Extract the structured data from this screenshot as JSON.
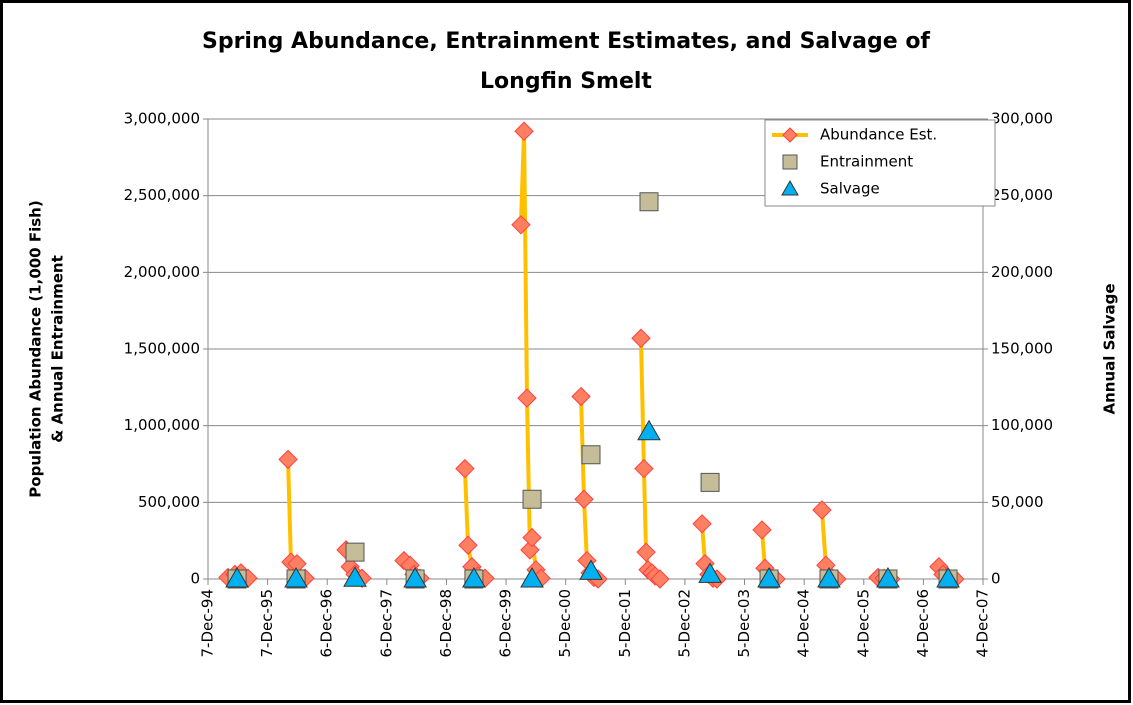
{
  "chart_data": {
    "type": "line",
    "title": [
      "Spring Abundance, Entrainment Estimates, and Salvage of",
      "Longfin Smelt"
    ],
    "ylabel": [
      "Population Abundance (1,000 Fish)",
      "& Annual Entrainment"
    ],
    "y2label": "Annual Salvage",
    "xlim": [
      "1994-12-07",
      "2007-12-04"
    ],
    "xticks": [
      {
        "value": "1994-12-07",
        "label": "7-Dec-94"
      },
      {
        "value": "1995-12-07",
        "label": "7-Dec-95"
      },
      {
        "value": "1996-12-06",
        "label": "6-Dec-96"
      },
      {
        "value": "1997-12-06",
        "label": "6-Dec-97"
      },
      {
        "value": "1998-12-06",
        "label": "6-Dec-98"
      },
      {
        "value": "1999-12-06",
        "label": "6-Dec-99"
      },
      {
        "value": "2000-12-05",
        "label": "5-Dec-00"
      },
      {
        "value": "2001-12-05",
        "label": "5-Dec-01"
      },
      {
        "value": "2002-12-05",
        "label": "5-Dec-02"
      },
      {
        "value": "2003-12-05",
        "label": "5-Dec-03"
      },
      {
        "value": "2004-12-04",
        "label": "4-Dec-04"
      },
      {
        "value": "2005-12-04",
        "label": "4-Dec-05"
      },
      {
        "value": "2006-12-04",
        "label": "4-Dec-06"
      },
      {
        "value": "2007-12-04",
        "label": "4-Dec-07"
      }
    ],
    "ylim": [
      0,
      3000000
    ],
    "yticks": [
      0,
      {
        "value": 500000,
        "label": "500,000"
      },
      {
        "value": 1000000,
        "label": "1,000,000"
      },
      {
        "value": 1500000,
        "label": "1,500,000"
      },
      {
        "value": 2000000,
        "label": "2,000,000"
      },
      {
        "value": 2500000,
        "label": "2,500,000"
      },
      {
        "value": 3000000,
        "label": "3,000,000"
      }
    ],
    "y2lim": [
      0,
      300000
    ],
    "y2ticks": [
      0,
      {
        "value": 50000,
        "label": "50,000"
      },
      {
        "value": 100000,
        "label": "100,000"
      },
      {
        "value": 150000,
        "label": "150,000"
      },
      {
        "value": 200000,
        "label": "200,000"
      },
      {
        "value": 250000,
        "label": "250,000"
      },
      {
        "value": 300000,
        "label": "300,000"
      }
    ],
    "grid": true,
    "legend": "top-right",
    "series": [
      {
        "name": "Abundance Est.",
        "color": "#ffc000",
        "marker": "diamond",
        "marker_color": "#ff8060",
        "x": [
          "1995-04-08",
          "1995-05-21",
          "1995-06-27",
          "1995-08-09",
          null,
          "1996-04-10",
          "1996-04-28",
          "1996-06-04",
          "1996-07-23",
          null,
          "1997-03-31",
          "1997-04-25",
          "1997-05-25",
          "1997-07-07",
          null,
          "1998-03-21",
          "1998-04-27",
          "1998-05-21",
          "1998-06-27",
          null,
          "1999-03-29",
          "1999-04-17",
          "1999-05-11",
          "1999-06-17",
          "1999-07-30",
          null,
          "2000-03-06",
          "2000-03-25",
          "2000-04-12",
          "2000-04-30",
          "2000-05-13",
          "2000-06-06",
          "2000-07-07",
          null,
          "2001-03-09",
          "2001-03-27",
          "2001-04-14",
          "2001-05-03",
          "2001-05-27",
          "2001-06-21",
          null,
          "2002-03-11",
          "2002-03-29",
          "2002-04-11",
          "2002-04-23",
          "2002-05-17",
          "2002-06-05",
          "2002-07-05",
          null,
          "2003-03-20",
          "2003-04-07",
          "2003-05-01",
          "2003-05-26",
          "2003-06-19",
          null,
          "2004-03-21",
          "2004-04-08",
          "2004-05-09",
          "2004-06-15",
          null,
          "2005-03-23",
          "2005-04-16",
          "2005-05-23",
          "2005-06-23",
          null,
          "2006-03-01",
          "2006-04-07",
          "2006-05-19",
          null,
          "2007-03-09",
          "2007-04-03",
          "2007-05-10",
          "2007-06-15"
        ],
        "values": [
          10000,
          30000,
          40000,
          5000,
          null,
          780000,
          110000,
          100000,
          5000,
          null,
          190000,
          80000,
          30000,
          5000,
          null,
          120000,
          90000,
          30000,
          5000,
          null,
          720000,
          220000,
          80000,
          20000,
          5000,
          null,
          2310000,
          2920000,
          1180000,
          190000,
          270000,
          60000,
          5000,
          null,
          1190000,
          520000,
          120000,
          40000,
          10000,
          0,
          null,
          1570000,
          720000,
          175000,
          60000,
          40000,
          20000,
          0,
          null,
          360000,
          100000,
          30000,
          5000,
          0,
          null,
          320000,
          70000,
          10000,
          0,
          null,
          450000,
          90000,
          10000,
          0,
          null,
          10000,
          5000,
          0,
          null,
          80000,
          30000,
          5000,
          0
        ]
      },
      {
        "name": "Entrainment",
        "color": "#c4bd97",
        "marker": "square",
        "x": [
          "1995-06-03",
          "1996-05-29",
          "1997-05-25",
          "1998-05-28",
          "1999-05-23",
          "2000-05-13",
          "2001-05-09",
          "2002-04-29",
          "2003-05-08",
          "2004-05-03",
          "2005-05-05",
          "2006-05-01",
          "2007-05-04"
        ],
        "values": [
          0,
          0,
          175000,
          0,
          0,
          520000,
          810000,
          2460000,
          630000,
          0,
          0,
          0,
          0
        ]
      },
      {
        "name": "Salvage",
        "color": "#00b0f0",
        "marker": "triangle",
        "axis": "y2",
        "x": [
          "1995-06-03",
          "1996-05-29",
          "1997-05-25",
          "1998-05-28",
          "1999-05-23",
          "2000-05-13",
          "2001-05-09",
          "2002-04-29",
          "2003-05-08",
          "2004-05-03",
          "2005-05-05",
          "2006-05-01",
          "2007-05-04"
        ],
        "values": [
          0,
          0,
          500,
          0,
          0,
          0,
          5000,
          96000,
          3000,
          0,
          0,
          0,
          0
        ]
      }
    ]
  }
}
